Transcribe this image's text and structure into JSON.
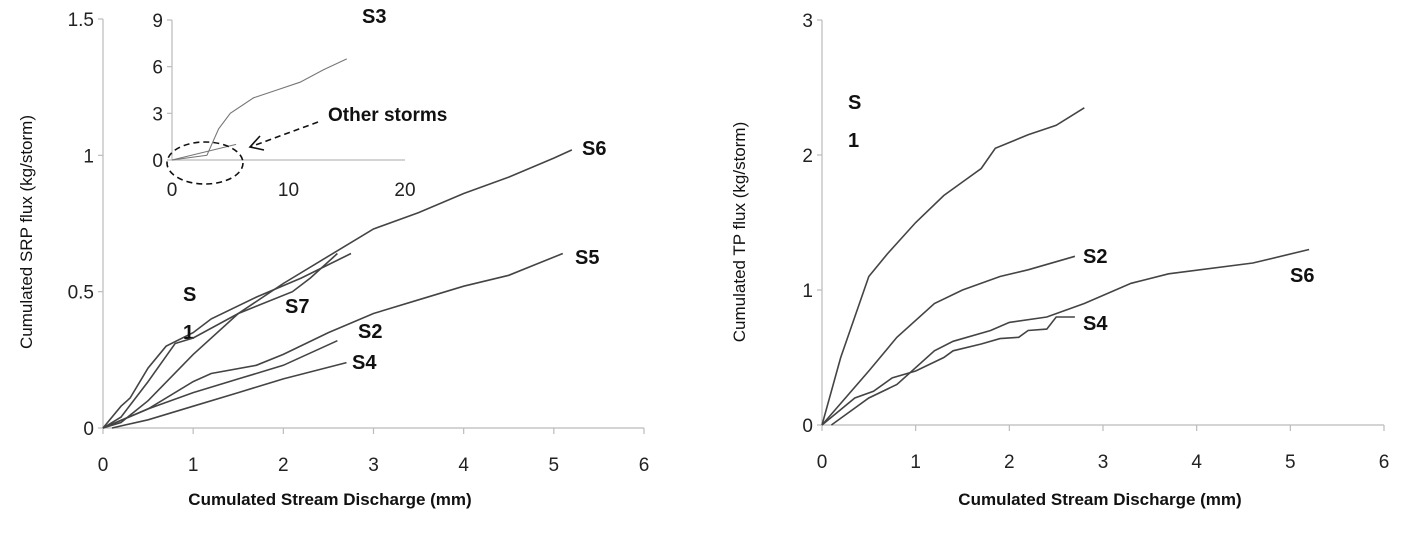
{
  "chart_data": [
    {
      "type": "line",
      "title": "",
      "xlabel": "Cumulated Stream Discharge (mm)",
      "ylabel": "Cumulated SRP flux (kg/storm)",
      "xlim": [
        0,
        6
      ],
      "ylim": [
        0,
        1.5
      ],
      "xticks": [
        "0",
        "1",
        "2",
        "3",
        "4",
        "5",
        "6"
      ],
      "yticks": [
        "0",
        "0.5",
        "1",
        "1.5"
      ],
      "series": [
        {
          "name": "S1",
          "label_lines": [
            "S",
            "1"
          ],
          "x": [
            0,
            0.2,
            0.3,
            0.5,
            0.7,
            1.0,
            1.2,
            1.7,
            2.2,
            2.75
          ],
          "y": [
            0,
            0.08,
            0.11,
            0.22,
            0.3,
            0.35,
            0.4,
            0.48,
            0.55,
            0.64
          ]
        },
        {
          "name": "S7",
          "label_lines": [
            "S7"
          ],
          "x": [
            0,
            0.2,
            0.5,
            0.8,
            1.0,
            1.5,
            2.1,
            2.3,
            2.6
          ],
          "y": [
            0,
            0.04,
            0.17,
            0.31,
            0.33,
            0.42,
            0.5,
            0.55,
            0.64
          ]
        },
        {
          "name": "S6",
          "label_lines": [
            "S6"
          ],
          "x": [
            0,
            0.2,
            0.5,
            1.0,
            1.5,
            2.0,
            2.5,
            3.0,
            3.5,
            4.0,
            4.5,
            5.0,
            5.2
          ],
          "y": [
            0,
            0.02,
            0.1,
            0.27,
            0.42,
            0.53,
            0.63,
            0.73,
            0.79,
            0.86,
            0.92,
            0.99,
            1.02
          ]
        },
        {
          "name": "S5",
          "label_lines": [
            "S5"
          ],
          "x": [
            0,
            0.5,
            1.0,
            1.2,
            1.7,
            2.0,
            2.5,
            3.0,
            3.5,
            4.0,
            4.5,
            4.8,
            5.1
          ],
          "y": [
            0,
            0.07,
            0.17,
            0.2,
            0.23,
            0.27,
            0.35,
            0.42,
            0.47,
            0.52,
            0.56,
            0.6,
            0.64
          ]
        },
        {
          "name": "S2",
          "label_lines": [
            "S2"
          ],
          "x": [
            0,
            0.5,
            1.0,
            1.5,
            2.0,
            2.6
          ],
          "y": [
            0,
            0.07,
            0.13,
            0.18,
            0.23,
            0.32
          ]
        },
        {
          "name": "S4",
          "label_lines": [
            "S4"
          ],
          "x": [
            0.1,
            0.5,
            1.0,
            1.5,
            2.0,
            2.7
          ],
          "y": [
            0,
            0.03,
            0.08,
            0.13,
            0.18,
            0.24
          ]
        }
      ],
      "inset": {
        "xlim": [
          0,
          20
        ],
        "ylim": [
          0,
          9
        ],
        "xticks": [
          "0",
          "10",
          "20"
        ],
        "yticks": [
          "0",
          "3",
          "6",
          "9"
        ],
        "series": [
          {
            "name": "S3",
            "label_lines": [
              "S3"
            ],
            "x": [
              0,
              3,
              4,
              5,
              7,
              9,
              11,
              13,
              15
            ],
            "y": [
              0,
              0.3,
              2,
              3,
              4,
              4.5,
              5,
              5.8,
              6.5
            ]
          },
          {
            "name": "Other storms",
            "x": [
              0,
              5.5
            ],
            "y": [
              0,
              1.0
            ]
          }
        ],
        "annotation": "Other storms"
      }
    },
    {
      "type": "line",
      "title": "",
      "xlabel": "Cumulated Stream Discharge (mm)",
      "ylabel": "Cumulated TP flux (kg/storm)",
      "xlim": [
        0,
        6
      ],
      "ylim": [
        0,
        3
      ],
      "xticks": [
        "0",
        "1",
        "2",
        "3",
        "4",
        "5",
        "6"
      ],
      "yticks": [
        "0",
        "1",
        "2",
        "3"
      ],
      "series": [
        {
          "name": "S1",
          "label_lines": [
            "S",
            "1"
          ],
          "x": [
            0,
            0.2,
            0.5,
            0.7,
            1.0,
            1.3,
            1.5,
            1.7,
            1.85,
            2.2,
            2.5,
            2.8
          ],
          "y": [
            0,
            0.5,
            1.1,
            1.27,
            1.5,
            1.7,
            1.8,
            1.9,
            2.05,
            2.15,
            2.22,
            2.35
          ]
        },
        {
          "name": "S2",
          "label_lines": [
            "S2"
          ],
          "x": [
            0,
            0.5,
            0.8,
            1.2,
            1.5,
            1.9,
            2.2,
            2.7
          ],
          "y": [
            0,
            0.4,
            0.65,
            0.9,
            1.0,
            1.1,
            1.15,
            1.25
          ]
        },
        {
          "name": "S6",
          "label_lines": [
            "S6"
          ],
          "x": [
            0.1,
            0.5,
            0.8,
            1.2,
            1.4,
            1.8,
            2.0,
            2.4,
            2.8,
            3.3,
            3.7,
            4.6,
            5.2
          ],
          "y": [
            0,
            0.2,
            0.3,
            0.55,
            0.62,
            0.7,
            0.76,
            0.8,
            0.9,
            1.05,
            1.12,
            1.2,
            1.3
          ]
        },
        {
          "name": "S4",
          "label_lines": [
            "S4"
          ],
          "x": [
            0,
            0.35,
            0.55,
            0.75,
            1.0,
            1.3,
            1.4,
            1.7,
            1.9,
            2.1,
            2.2,
            2.4,
            2.5,
            2.7
          ],
          "y": [
            0,
            0.2,
            0.25,
            0.35,
            0.4,
            0.5,
            0.55,
            0.6,
            0.64,
            0.65,
            0.7,
            0.71,
            0.8,
            0.8
          ]
        }
      ]
    }
  ]
}
